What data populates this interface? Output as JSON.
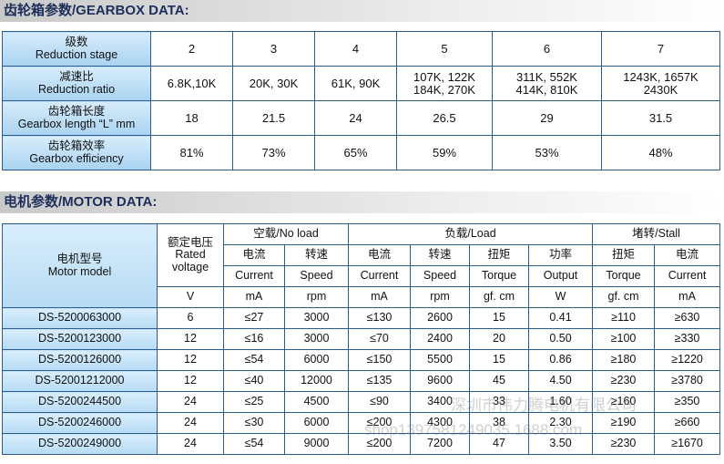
{
  "gearbox": {
    "title": "齿轮箱参数/GEARBOX DATA:",
    "rows": [
      {
        "label_cn": "级数",
        "label_en": "Reduction stage",
        "values": [
          "2",
          "3",
          "4",
          "5",
          "6",
          "7"
        ]
      },
      {
        "label_cn": "减速比",
        "label_en": "Reduction ratio",
        "values": [
          "6.8K,10K",
          "20K, 30K",
          "61K, 90K",
          "107K, 122K\n184K, 270K",
          "311K, 552K\n414K, 810K",
          "1243K, 1657K\n2430K"
        ]
      },
      {
        "label_cn": "齿轮箱长度",
        "label_en": "Gearbox length “L” mm",
        "values": [
          "18",
          "21.5",
          "24",
          "26.5",
          "29",
          "31.5"
        ]
      },
      {
        "label_cn": "齿轮箱效率",
        "label_en": "Gearbox efficiency",
        "values": [
          "81%",
          "73%",
          "65%",
          "59%",
          "53%",
          "48%"
        ]
      }
    ]
  },
  "motor": {
    "title": "电机参数/MOTOR DATA:",
    "model_cn": "电机型号",
    "model_en": "Motor model",
    "voltage_cn": "额定电压",
    "voltage_en": "Rated voltage",
    "voltage_unit": "V",
    "groups": [
      "空载/No load",
      "负载/Load",
      "堵转/Stall"
    ],
    "columns": [
      {
        "cn": "电流",
        "en": "Current",
        "unit": "mA"
      },
      {
        "cn": "转速",
        "en": "Speed",
        "unit": "rpm"
      },
      {
        "cn": "电流",
        "en": "Current",
        "unit": "mA"
      },
      {
        "cn": "转速",
        "en": "Speed",
        "unit": "rpm"
      },
      {
        "cn": "扭矩",
        "en": "Torque",
        "unit": "gf. cm"
      },
      {
        "cn": "功率",
        "en": "Output",
        "unit": "W"
      },
      {
        "cn": "扭矩",
        "en": "Torque",
        "unit": "gf. cm"
      },
      {
        "cn": "电流",
        "en": "Current",
        "unit": "mA"
      }
    ],
    "rows": [
      [
        "DS-5200063000",
        "6",
        "≤27",
        "3000",
        "≤130",
        "2600",
        "15",
        "0.41",
        "≥110",
        "≥630"
      ],
      [
        "DS-5200123000",
        "12",
        "≤16",
        "3000",
        "≤70",
        "2400",
        "20",
        "0.50",
        "≥100",
        "≥330"
      ],
      [
        "DS-5200126000",
        "12",
        "≤54",
        "6000",
        "≤150",
        "5500",
        "15",
        "0.86",
        "≥180",
        "≥1220"
      ],
      [
        "DS-52001212000",
        "12",
        "≤40",
        "12000",
        "≤135",
        "9600",
        "45",
        "4.50",
        "≥230",
        "≥3780"
      ],
      [
        "DS-5200244500",
        "24",
        "≤25",
        "4500",
        "≤90",
        "3400",
        "33",
        "1.60",
        "≥160",
        "≥350"
      ],
      [
        "DS-5200246000",
        "24",
        "≤30",
        "6000",
        "≤200",
        "4300",
        "38",
        "2.30",
        "≥190",
        "≥660"
      ],
      [
        "DS-5200249000",
        "24",
        "≤54",
        "9000",
        "≤200",
        "7200",
        "47",
        "3.50",
        "≥230",
        "≥1670"
      ]
    ]
  },
  "watermark": {
    "company": "深圳市伟力腾电机有限公司",
    "site": "shop1397581249035.1688.com"
  }
}
